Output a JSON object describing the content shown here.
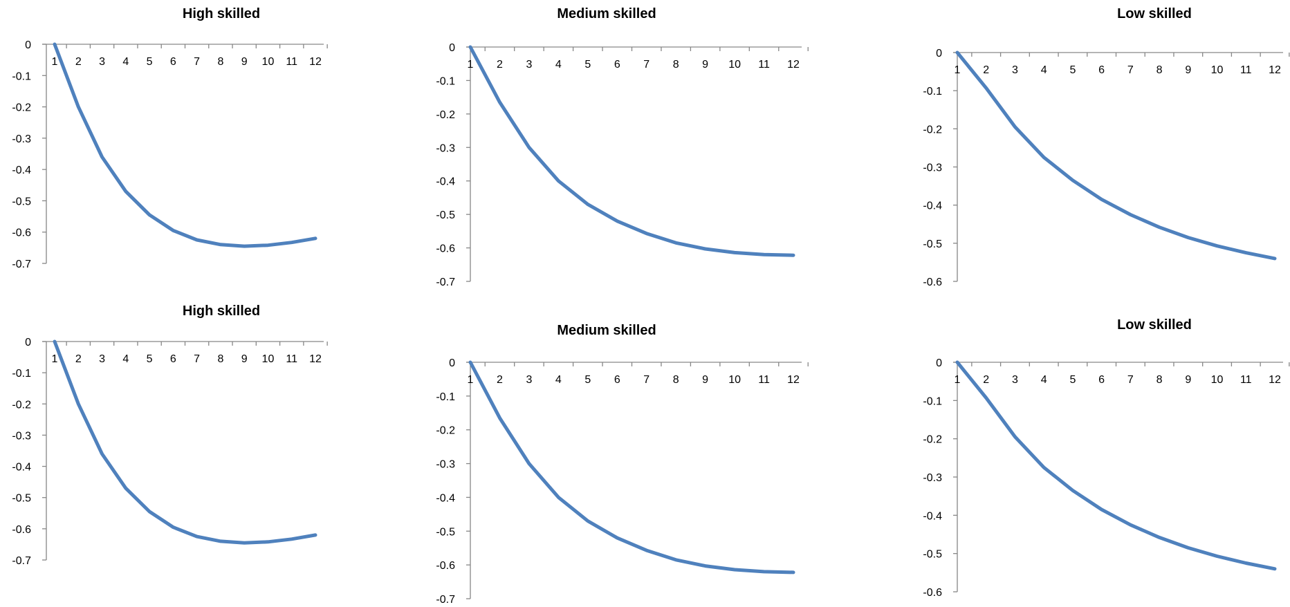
{
  "chart_data": [
    {
      "type": "line",
      "title": "High skilled",
      "x": [
        1,
        2,
        3,
        4,
        5,
        6,
        7,
        8,
        9,
        10,
        11,
        12
      ],
      "ylim": [
        -0.7,
        0
      ],
      "yticks": [
        0,
        -0.1,
        -0.2,
        -0.3,
        -0.4,
        -0.5,
        -0.6,
        -0.7
      ],
      "series": [
        {
          "values": [
            0,
            -0.2,
            -0.36,
            -0.47,
            -0.545,
            -0.595,
            -0.625,
            -0.64,
            -0.645,
            -0.642,
            -0.633,
            -0.62
          ]
        }
      ],
      "color": "#4f81bd",
      "grid": false,
      "legend": "none"
    },
    {
      "type": "line",
      "title": "Medium skilled",
      "x": [
        1,
        2,
        3,
        4,
        5,
        6,
        7,
        8,
        9,
        10,
        11,
        12
      ],
      "ylim": [
        -0.7,
        0
      ],
      "yticks": [
        0,
        -0.1,
        -0.2,
        -0.3,
        -0.4,
        -0.5,
        -0.6,
        -0.7
      ],
      "series": [
        {
          "values": [
            0,
            -0.165,
            -0.3,
            -0.4,
            -0.47,
            -0.52,
            -0.557,
            -0.585,
            -0.603,
            -0.614,
            -0.62,
            -0.622
          ]
        }
      ],
      "color": "#4f81bd",
      "grid": false,
      "legend": "none"
    },
    {
      "type": "line",
      "title": "Low skilled",
      "x": [
        1,
        2,
        3,
        4,
        5,
        6,
        7,
        8,
        9,
        10,
        11,
        12
      ],
      "ylim": [
        -0.6,
        0
      ],
      "yticks": [
        0,
        -0.1,
        -0.2,
        -0.3,
        -0.4,
        -0.5,
        -0.6
      ],
      "series": [
        {
          "values": [
            0,
            -0.093,
            -0.195,
            -0.275,
            -0.335,
            -0.385,
            -0.425,
            -0.458,
            -0.485,
            -0.507,
            -0.525,
            -0.54
          ]
        }
      ],
      "color": "#4f81bd",
      "grid": false,
      "legend": "none"
    },
    {
      "type": "line",
      "title": "High skilled",
      "x": [
        1,
        2,
        3,
        4,
        5,
        6,
        7,
        8,
        9,
        10,
        11,
        12
      ],
      "ylim": [
        -0.7,
        0
      ],
      "yticks": [
        0,
        -0.1,
        -0.2,
        -0.3,
        -0.4,
        -0.5,
        -0.6,
        -0.7
      ],
      "series": [
        {
          "values": [
            0,
            -0.2,
            -0.36,
            -0.47,
            -0.545,
            -0.595,
            -0.625,
            -0.64,
            -0.645,
            -0.642,
            -0.633,
            -0.62
          ]
        }
      ],
      "color": "#4f81bd",
      "grid": false,
      "legend": "none"
    },
    {
      "type": "line",
      "title": "Medium skilled",
      "x": [
        1,
        2,
        3,
        4,
        5,
        6,
        7,
        8,
        9,
        10,
        11,
        12
      ],
      "ylim": [
        -0.7,
        0
      ],
      "yticks": [
        0,
        -0.1,
        -0.2,
        -0.3,
        -0.4,
        -0.5,
        -0.6,
        -0.7
      ],
      "series": [
        {
          "values": [
            0,
            -0.165,
            -0.3,
            -0.4,
            -0.47,
            -0.52,
            -0.557,
            -0.585,
            -0.603,
            -0.614,
            -0.62,
            -0.622
          ]
        }
      ],
      "color": "#4f81bd",
      "grid": false,
      "legend": "none"
    },
    {
      "type": "line",
      "title": "Low skilled",
      "x": [
        1,
        2,
        3,
        4,
        5,
        6,
        7,
        8,
        9,
        10,
        11,
        12
      ],
      "ylim": [
        -0.6,
        0
      ],
      "yticks": [
        0,
        -0.1,
        -0.2,
        -0.3,
        -0.4,
        -0.5,
        -0.6
      ],
      "series": [
        {
          "values": [
            0,
            -0.093,
            -0.195,
            -0.275,
            -0.335,
            -0.385,
            -0.425,
            -0.458,
            -0.485,
            -0.507,
            -0.525,
            -0.54
          ]
        }
      ],
      "color": "#4f81bd",
      "grid": false,
      "legend": "none"
    }
  ]
}
